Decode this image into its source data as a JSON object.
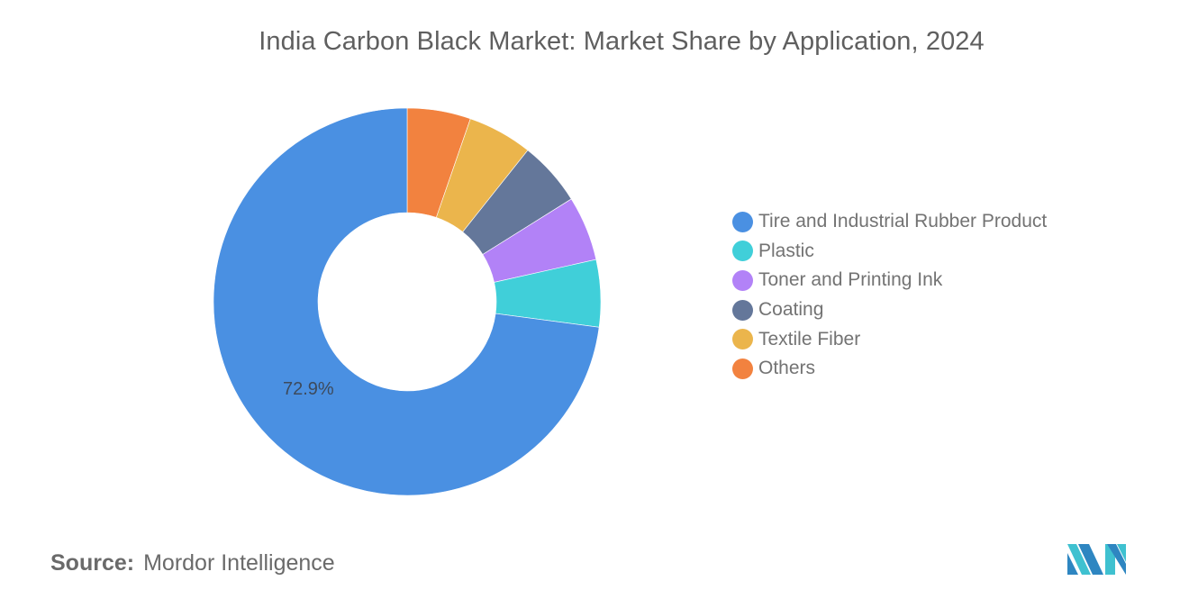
{
  "title": "India Carbon Black Market: Market Share by Application, 2024",
  "source": {
    "key": "Source:",
    "value": "Mordor Intelligence"
  },
  "logo": {
    "icon": "mordor-intelligence-logo-icon",
    "colors": [
      "#2e86c1",
      "#3fc1d0"
    ]
  },
  "chart_data": {
    "type": "pie",
    "subtype": "donut",
    "title": "India Carbon Black Market: Market Share by Application, 2024",
    "categories": [
      "Tire and Industrial Rubber Product",
      "Plastic",
      "Toner and Printing Ink",
      "Coating",
      "Textile Fiber",
      "Others"
    ],
    "values": [
      72.9,
      5.6,
      5.4,
      5.4,
      5.4,
      5.3
    ],
    "colors": [
      "#4a90e2",
      "#40cfd9",
      "#b282f7",
      "#64779a",
      "#ebb54c",
      "#f2823f"
    ],
    "data_labels": [
      {
        "category": "Tire and Industrial Rubber Product",
        "text": "72.9%"
      }
    ],
    "legend_position": "right",
    "start_angle_deg": 0,
    "direction": "counterclockwise-from-top (Others first clockwise from 12 o'clock)"
  },
  "legend": {
    "items": [
      {
        "label": "Tire and Industrial Rubber Product",
        "color": "#4a90e2"
      },
      {
        "label": "Plastic",
        "color": "#40cfd9"
      },
      {
        "label": "Toner and Printing Ink",
        "color": "#b282f7"
      },
      {
        "label": "Coating",
        "color": "#64779a"
      },
      {
        "label": "Textile Fiber",
        "color": "#ebb54c"
      },
      {
        "label": "Others",
        "color": "#f2823f"
      }
    ]
  }
}
